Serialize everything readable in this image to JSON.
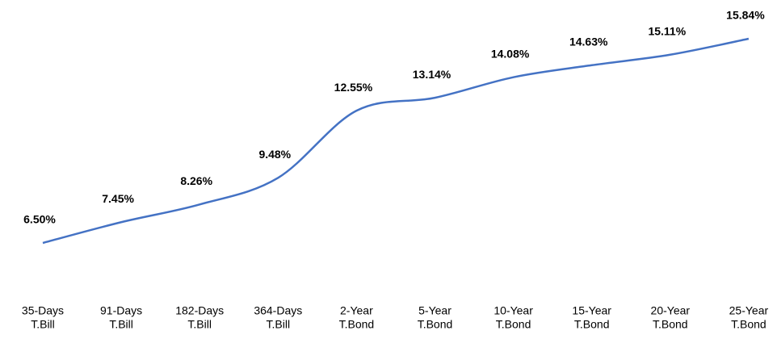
{
  "chart_data": {
    "type": "line",
    "categories": [
      [
        "35-Days",
        "T.Bill"
      ],
      [
        "91-Days",
        "T.Bill"
      ],
      [
        "182-Days",
        "T.Bill"
      ],
      [
        "364-Days",
        "T.Bill"
      ],
      [
        "2-Year",
        "T.Bond"
      ],
      [
        "5-Year",
        "T.Bond"
      ],
      [
        "10-Year",
        "T.Bond"
      ],
      [
        "15-Year",
        "T.Bond"
      ],
      [
        "20-Year",
        "T.Bond"
      ],
      [
        "25-Year",
        "T.Bond"
      ]
    ],
    "values": [
      6.5,
      7.45,
      8.26,
      9.48,
      12.55,
      13.14,
      14.08,
      14.63,
      15.11,
      15.84
    ],
    "value_labels": [
      "6.50%",
      "7.45%",
      "8.26%",
      "9.48%",
      "12.55%",
      "13.14%",
      "14.08%",
      "14.63%",
      "15.11%",
      "15.84%"
    ],
    "color": "#4472c4",
    "ylim": [
      4,
      17
    ],
    "smooth": true
  }
}
